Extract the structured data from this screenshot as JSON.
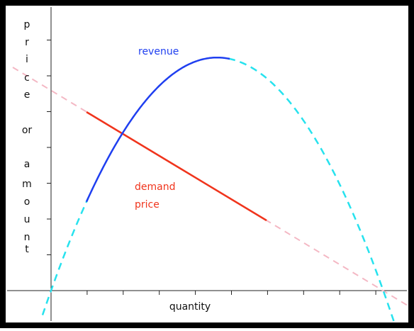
{
  "y_axis_label": {
    "lines": [
      "p",
      "r",
      "i",
      "c",
      "e",
      "or",
      "a",
      "m",
      "o",
      "u",
      "n",
      "t"
    ]
  },
  "x_axis_label": "quantity",
  "revenue_label": "revenue",
  "demand_label": {
    "lines": [
      "demand",
      "price"
    ]
  }
}
